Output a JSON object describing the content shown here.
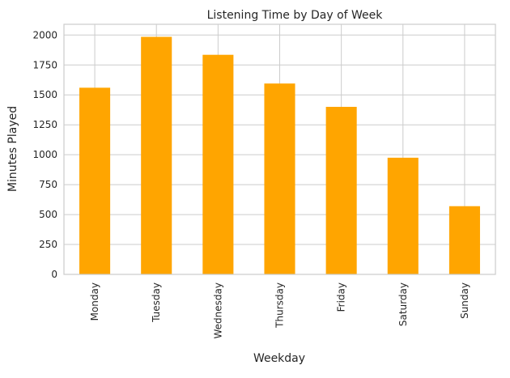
{
  "chart_data": {
    "type": "bar",
    "title": "Listening Time by Day of Week",
    "xlabel": "Weekday",
    "ylabel": "Minutes Played",
    "categories": [
      "Monday",
      "Tuesday",
      "Wednesday",
      "Thursday",
      "Friday",
      "Saturday",
      "Sunday"
    ],
    "values": [
      1560,
      1985,
      1835,
      1595,
      1400,
      975,
      570
    ],
    "ylim": [
      0,
      2090
    ],
    "yticks": [
      0,
      250,
      500,
      750,
      1000,
      1250,
      1500,
      1750,
      2000
    ],
    "grid": true,
    "legend": "none",
    "colors": {
      "bar": "#FFA500",
      "grid": "#cccccc",
      "spine": "#cccccc",
      "background": "#ffffff"
    }
  }
}
